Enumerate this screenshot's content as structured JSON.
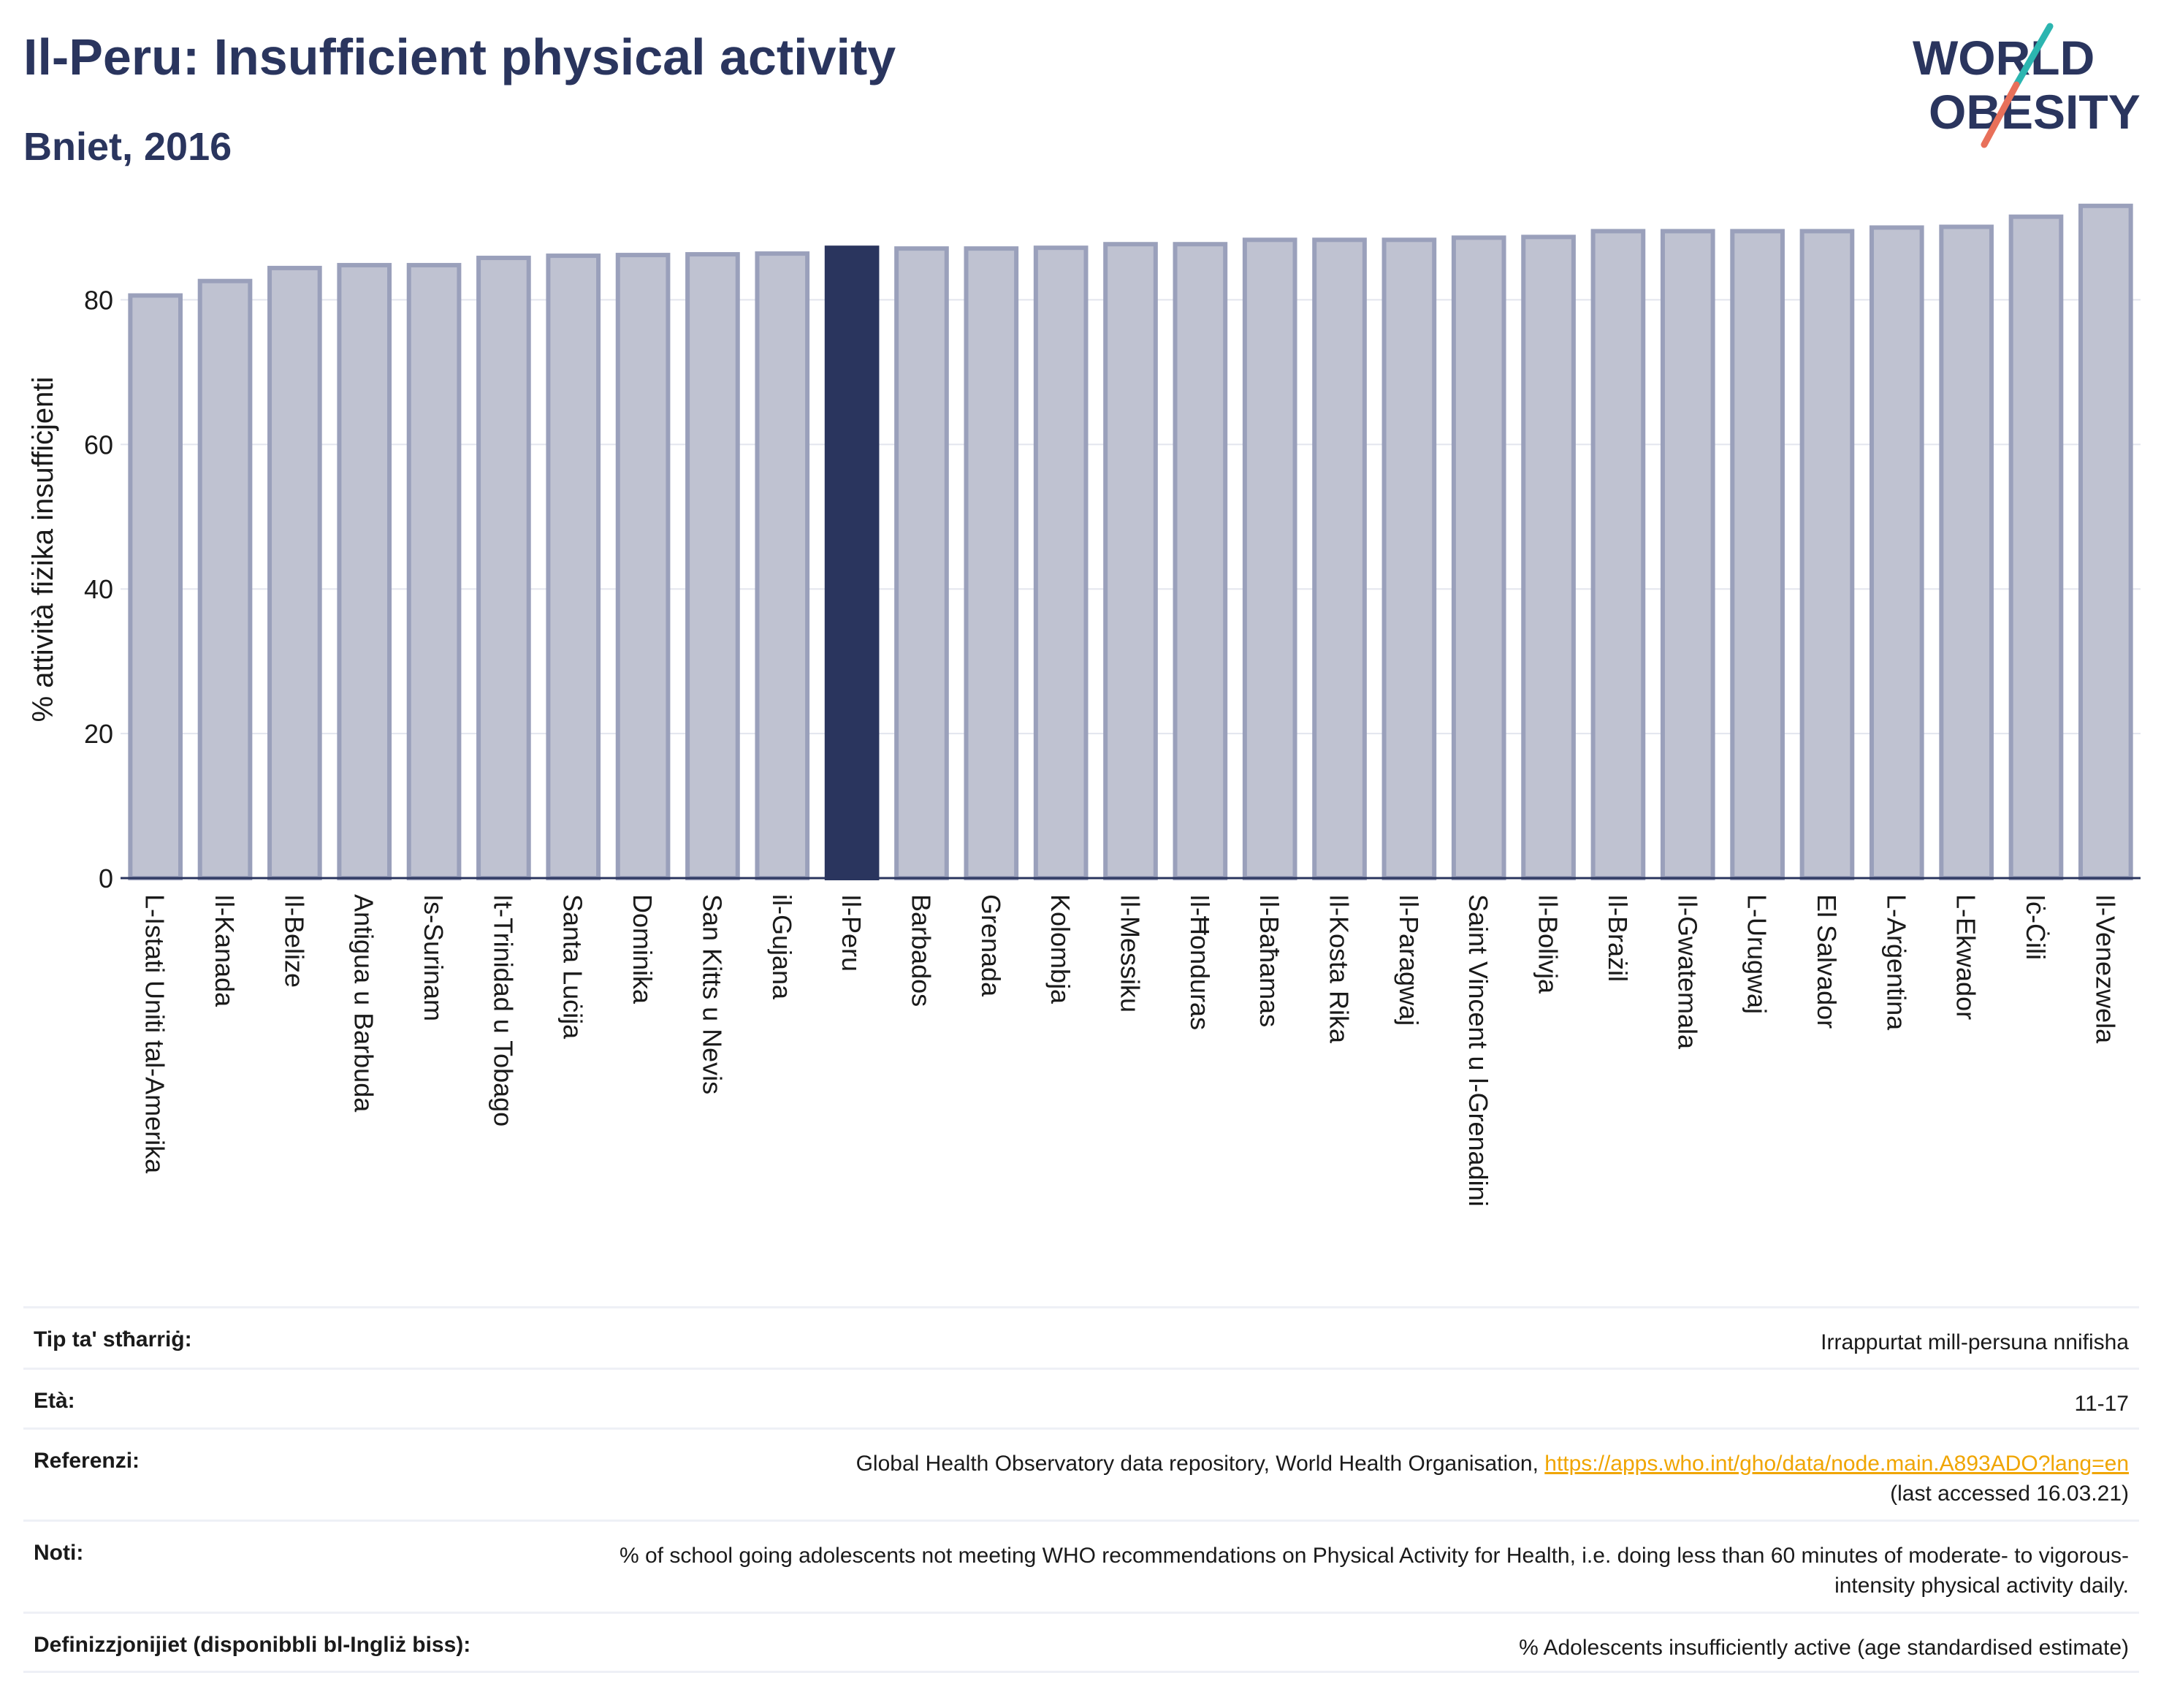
{
  "header": {
    "title": "Il-Peru: Insufficient physical activity",
    "subtitle": "Bniet, 2016"
  },
  "logo": {
    "line1": "WORLD",
    "line2": "OBESITY"
  },
  "colors": {
    "bar": "#bfc2d1",
    "bar_border": "#9aa0bb",
    "highlight": "#2a355e",
    "grid": "#e3e5ee",
    "axis": "#2a355e",
    "link": "#f0a500"
  },
  "chart_data": {
    "type": "bar",
    "ylabel": "% attività fiżika insuffiċjenti",
    "xlabel": "",
    "ylim": [
      0,
      95
    ],
    "yticks": [
      0,
      20,
      40,
      60,
      80
    ],
    "grid": true,
    "highlight": "Il-Peru",
    "categories": [
      "L-Istati Uniti tal-Amerika",
      "Il-Kanada",
      "Il-Belize",
      "Antigua u Barbuda",
      "Is-Surinam",
      "It-Trinidad u Tobago",
      "Santa Luċija",
      "Dominika",
      "San Kitts u Nevis",
      "il-Gujana",
      "Il-Peru",
      "Barbados",
      "Grenada",
      "Kolombja",
      "Il-Messiku",
      "Il-Ħonduras",
      "Il-Baħamas",
      "Il-Kosta Rika",
      "Il-Paragwaj",
      "Saint Vincent u l-Grenadini",
      "Il-Bolivja",
      "Il-Brażil",
      "Il-Gwatemala",
      "L-Urugwaj",
      "El Salvador",
      "L-Arġentina",
      "L-Ekwador",
      "Iċ-Ċili",
      "Il-Venezwela"
    ],
    "values": [
      80.6,
      82.6,
      84.4,
      84.8,
      84.8,
      85.8,
      86.1,
      86.2,
      86.3,
      86.4,
      87.2,
      87.1,
      87.1,
      87.2,
      87.7,
      87.7,
      88.3,
      88.3,
      88.3,
      88.6,
      88.7,
      89.5,
      89.5,
      89.5,
      89.5,
      90.0,
      90.1,
      91.5,
      93.0
    ]
  },
  "meta": [
    {
      "label": "Tip ta' stħarriġ:",
      "value": "Irrappurtat mill-persuna nnifisha"
    },
    {
      "label": "Età:",
      "value": "11-17"
    },
    {
      "label": "Referenzi:",
      "value": "Global Health Observatory data repository, World Health Organisation, ",
      "link": "https://apps.who.int/gho/data/node.main.A893ADO?lang=en",
      "suffix": "(last accessed 16.03.21)"
    },
    {
      "label": "Noti:",
      "value": "% of school going adolescents not meeting WHO recommendations on Physical Activity for Health, i.e. doing less than 60 minutes of moderate- to vigorous-intensity physical activity daily."
    },
    {
      "label": "Definizzjonijiet (disponibbli bl-Ingliż biss):",
      "value": "% Adolescents insufficiently active (age standardised estimate)"
    }
  ]
}
